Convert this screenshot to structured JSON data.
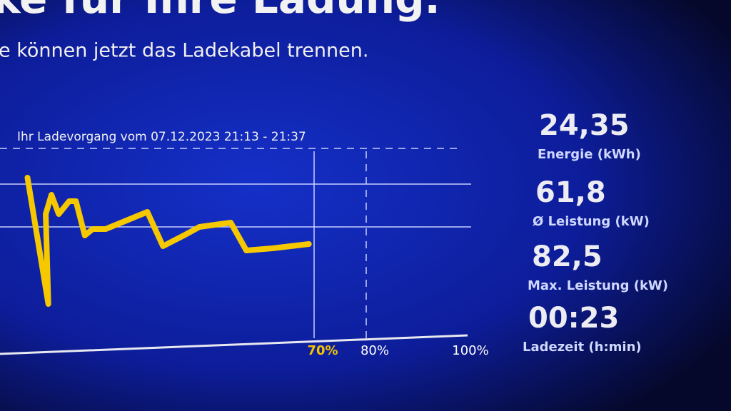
{
  "header": {
    "title": "ke für Ihre Ladung.",
    "subtitle": "e können jetzt das Ladekabel trennen."
  },
  "chart_data": {
    "type": "line",
    "title": "Ihr Ladevorgang vom 07.12.2023 21:13 - 21:37",
    "x": [
      15,
      19,
      18.5,
      19.6,
      21,
      23,
      24.3,
      26,
      27.5,
      30,
      33,
      38,
      41,
      45,
      48,
      54,
      57,
      62,
      69
    ],
    "values": [
      83,
      24,
      66,
      75,
      66,
      72,
      72,
      56,
      59,
      59,
      62,
      67,
      51,
      56,
      60,
      62,
      49,
      50,
      52
    ],
    "color": "#f5c800",
    "xlim": [
      10,
      100
    ],
    "ylim": [
      10,
      100
    ],
    "xticks": [
      {
        "value": 70,
        "label": "70%"
      },
      {
        "value": 80,
        "label": "80%"
      },
      {
        "value": 100,
        "label": "100%"
      }
    ],
    "xtick_colors": [
      "#f5c400",
      "#ffffff",
      "#ffffff"
    ],
    "ygrid": [
      60,
      80
    ]
  },
  "stats": [
    {
      "value": "24,35",
      "label": "Energie (kWh)"
    },
    {
      "value": "61,8",
      "label": "Ø Leistung (kW)"
    },
    {
      "value": "82,5",
      "label": "Max. Leistung (kW)"
    },
    {
      "value": "00:23",
      "label": "Ladezeit (h:min)"
    }
  ]
}
